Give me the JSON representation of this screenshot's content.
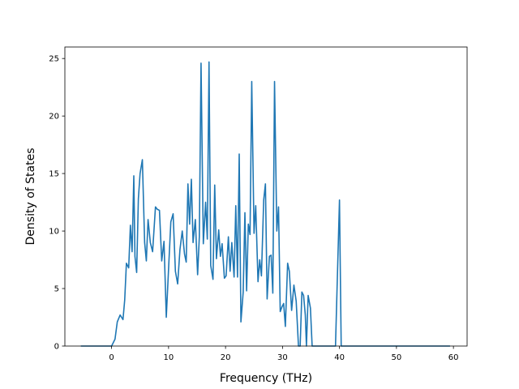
{
  "chart_data": {
    "type": "line",
    "title": "",
    "xlabel": "Frequency (THz)",
    "ylabel": "Density of States",
    "xlim": [
      -8.2,
      62.4
    ],
    "ylim": [
      0,
      26
    ],
    "xticks": [
      0,
      10,
      20,
      30,
      40,
      50,
      60
    ],
    "yticks": [
      0,
      5,
      10,
      15,
      20,
      25
    ],
    "grid": false,
    "legend": "none",
    "series": [
      {
        "color": "#1f77b4",
        "x": [
          -5.4,
          0.0,
          0.6,
          1.0,
          1.5,
          2.0,
          2.3,
          2.6,
          3.0,
          3.3,
          3.6,
          3.9,
          4.1,
          4.4,
          4.7,
          5.0,
          5.4,
          5.8,
          6.1,
          6.4,
          6.8,
          7.2,
          7.7,
          8.0,
          8.4,
          8.8,
          9.2,
          9.6,
          10.0,
          10.4,
          10.8,
          11.2,
          11.6,
          12.0,
          12.4,
          12.8,
          13.1,
          13.4,
          13.7,
          14.0,
          14.3,
          14.7,
          15.1,
          15.4,
          15.7,
          16.1,
          16.5,
          16.8,
          17.1,
          17.4,
          17.8,
          18.1,
          18.4,
          18.8,
          19.1,
          19.4,
          19.8,
          20.1,
          20.5,
          20.8,
          21.1,
          21.5,
          21.8,
          22.1,
          22.4,
          22.7,
          23.1,
          23.4,
          23.7,
          24.0,
          24.3,
          24.6,
          25.0,
          25.3,
          25.7,
          26.0,
          26.3,
          26.7,
          27.0,
          27.3,
          27.7,
          28.0,
          28.3,
          28.6,
          29.0,
          29.3,
          29.6,
          29.9,
          30.2,
          30.5,
          30.9,
          31.2,
          31.6,
          32.0,
          32.4,
          32.8,
          33.1,
          33.4,
          33.7,
          34.0,
          34.2,
          34.5,
          34.9,
          35.2,
          35.5,
          35.8,
          36.1,
          36.4,
          36.7,
          37.0,
          37.4,
          39.3,
          40.0,
          40.3,
          41.0,
          59.4
        ],
        "values": [
          0,
          0,
          0.6,
          2.1,
          2.7,
          2.3,
          4.0,
          7.2,
          6.8,
          10.5,
          8.2,
          14.8,
          7.8,
          6.4,
          12.8,
          15.0,
          16.2,
          9.0,
          7.4,
          11.0,
          9.0,
          8.2,
          12.1,
          11.9,
          11.8,
          7.4,
          9.1,
          2.5,
          6.7,
          10.8,
          11.5,
          6.5,
          5.4,
          8.4,
          10.0,
          8.0,
          7.3,
          14.1,
          10.6,
          14.5,
          9.0,
          11.0,
          6.2,
          9.5,
          24.6,
          8.9,
          12.5,
          9.3,
          24.7,
          7.0,
          5.8,
          14.0,
          7.6,
          10.1,
          7.8,
          8.9,
          5.9,
          6.1,
          9.5,
          6.5,
          9.0,
          6.0,
          12.2,
          6.0,
          16.7,
          2.1,
          4.7,
          11.6,
          4.8,
          10.6,
          9.7,
          23.0,
          9.8,
          12.2,
          5.6,
          7.5,
          6.1,
          12.7,
          14.1,
          4.1,
          7.8,
          7.9,
          4.6,
          23.0,
          10.0,
          12.1,
          3.0,
          3.4,
          3.7,
          1.7,
          7.2,
          6.5,
          3.1,
          5.3,
          3.9,
          0,
          0,
          4.7,
          4.4,
          2.7,
          0,
          4.4,
          3.3,
          0,
          0,
          0,
          0,
          0,
          0,
          0,
          0,
          0,
          12.7,
          0,
          0,
          0
        ]
      }
    ]
  }
}
